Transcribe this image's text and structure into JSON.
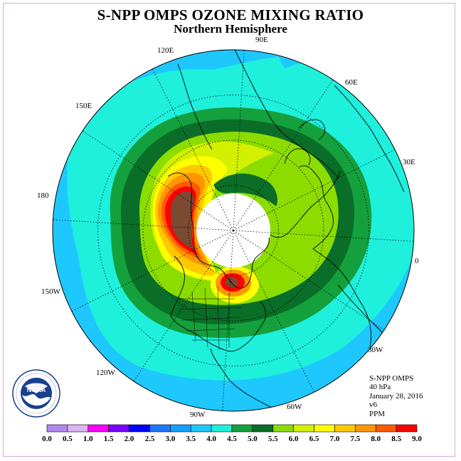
{
  "header": {
    "title": "S-NPP OMPS OZONE MIXING RATIO",
    "subtitle": "Northern Hemisphere"
  },
  "longitude_labels": [
    "90E",
    "60E",
    "30E",
    "0",
    "30W",
    "60W",
    "90W",
    "120W",
    "150W",
    "180",
    "150E",
    "120E"
  ],
  "info": {
    "instrument": "S-NPP OMPS",
    "level": "40 hPa",
    "date": "January 28, 2016",
    "version": "v6",
    "units": "PPM"
  },
  "colorbar": {
    "ticks": [
      "0.0",
      "0.5",
      "1.0",
      "1.5",
      "2.0",
      "2.5",
      "3.0",
      "3.5",
      "4.0",
      "4.5",
      "5.0",
      "5.5",
      "6.0",
      "6.5",
      "7.0",
      "7.5",
      "8.0",
      "8.5",
      "9.0"
    ],
    "colors": [
      "#b288f0",
      "#dcb4f0",
      "#ff00ff",
      "#7a00ff",
      "#0000ff",
      "#1e78ff",
      "#14a0ff",
      "#1ec8ff",
      "#1ef0dc",
      "#14a03c",
      "#0a6e28",
      "#8cdc00",
      "#d2f000",
      "#ffff00",
      "#ffc800",
      "#ff9600",
      "#ff5a00",
      "#ff0000",
      "#7a4a32"
    ]
  },
  "logo": {
    "text": "NOAA",
    "name": "NOAA emblem"
  }
}
